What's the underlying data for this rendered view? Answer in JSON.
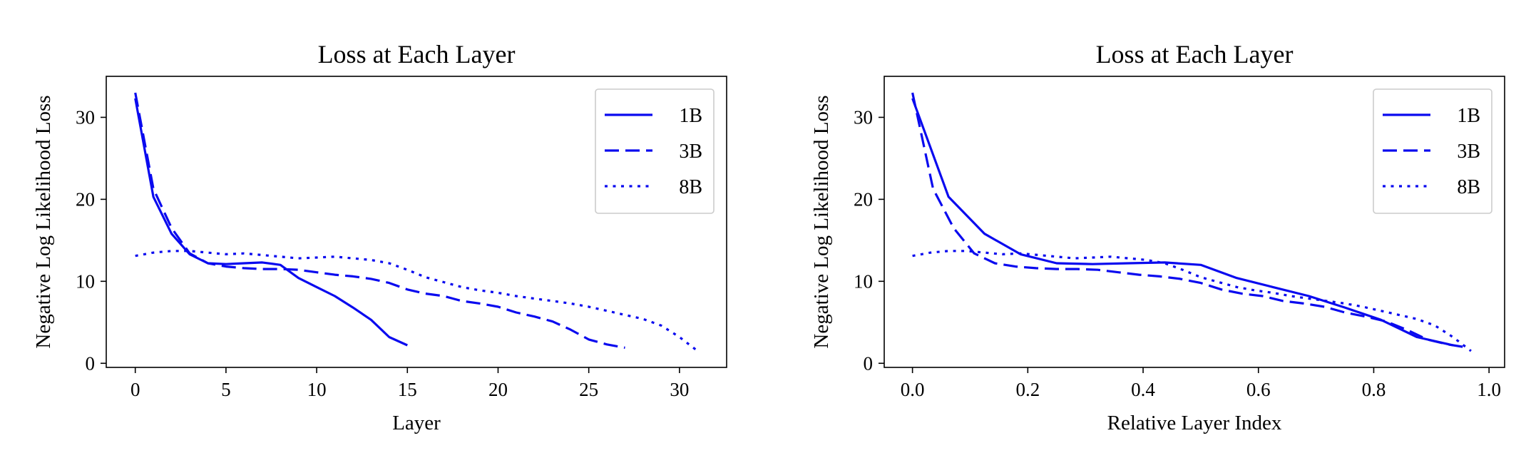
{
  "chart_data": [
    {
      "type": "line",
      "title": "Loss at Each Layer",
      "xlabel": "Layer",
      "ylabel": "Negative Log Likelihood Loss",
      "xlim": [
        -1.6,
        32.6
      ],
      "ylim": [
        -0.5,
        35
      ],
      "xticks": [
        0,
        5,
        10,
        15,
        20,
        25,
        30
      ],
      "xtick_labels": [
        "0",
        "5",
        "10",
        "15",
        "20",
        "25",
        "30"
      ],
      "yticks": [
        0,
        10,
        20,
        30
      ],
      "ytick_labels": [
        "0",
        "10",
        "20",
        "30"
      ],
      "grid": false,
      "legend_position": "top-right",
      "color": "#0a0aef",
      "series": [
        {
          "name": "1B",
          "style": "solid",
          "x": [
            0,
            1,
            2,
            3,
            4,
            5,
            6,
            7,
            8,
            9,
            10,
            11,
            12,
            13,
            14,
            15
          ],
          "y": [
            32.3,
            20.3,
            15.8,
            13.3,
            12.2,
            12.1,
            12.2,
            12.3,
            12.0,
            10.4,
            9.3,
            8.2,
            6.8,
            5.3,
            3.2,
            2.2
          ]
        },
        {
          "name": "3B",
          "style": "dashed",
          "x": [
            0,
            1,
            2,
            3,
            4,
            5,
            6,
            7,
            8,
            9,
            10,
            11,
            12,
            13,
            14,
            15,
            16,
            17,
            18,
            19,
            20,
            21,
            22,
            23,
            24,
            25,
            26,
            27
          ],
          "y": [
            33.0,
            21.3,
            16.5,
            13.4,
            12.2,
            11.8,
            11.6,
            11.5,
            11.5,
            11.4,
            11.1,
            10.8,
            10.6,
            10.3,
            9.8,
            9.0,
            8.5,
            8.2,
            7.6,
            7.3,
            6.9,
            6.2,
            5.7,
            5.1,
            4.1,
            2.9,
            2.3,
            1.9
          ]
        },
        {
          "name": "8B",
          "style": "dotted",
          "x": [
            0,
            1,
            2,
            3,
            4,
            5,
            6,
            7,
            8,
            9,
            10,
            11,
            12,
            13,
            14,
            15,
            16,
            17,
            18,
            19,
            20,
            21,
            22,
            23,
            24,
            25,
            26,
            27,
            28,
            29,
            30,
            31
          ],
          "y": [
            13.1,
            13.5,
            13.7,
            13.7,
            13.5,
            13.3,
            13.4,
            13.2,
            13.0,
            12.8,
            12.9,
            13.0,
            12.8,
            12.6,
            12.2,
            11.4,
            10.5,
            9.9,
            9.3,
            8.9,
            8.6,
            8.2,
            7.9,
            7.6,
            7.3,
            6.9,
            6.4,
            5.9,
            5.4,
            4.6,
            3.2,
            1.5
          ]
        }
      ]
    },
    {
      "type": "line",
      "title": "Loss at Each Layer",
      "xlabel": "Relative Layer Index",
      "ylabel": "Negative Log Likelihood Loss",
      "xlim": [
        -0.049,
        1.027
      ],
      "ylim": [
        -0.5,
        35
      ],
      "xticks": [
        0.0,
        0.2,
        0.4,
        0.6,
        0.8,
        1.0
      ],
      "xtick_labels": [
        "0.0",
        "0.2",
        "0.4",
        "0.6",
        "0.8",
        "1.0"
      ],
      "yticks": [
        0,
        10,
        20,
        30
      ],
      "ytick_labels": [
        "0",
        "10",
        "20",
        "30"
      ],
      "grid": false,
      "legend_position": "top-right",
      "color": "#0a0aef",
      "series": [
        {
          "name": "1B",
          "style": "solid",
          "x": [
            0,
            0.0625,
            0.125,
            0.1875,
            0.25,
            0.3125,
            0.375,
            0.4375,
            0.5,
            0.5625,
            0.625,
            0.6875,
            0.75,
            0.8125,
            0.875,
            0.9375
          ],
          "y": [
            32.3,
            20.3,
            15.8,
            13.3,
            12.2,
            12.1,
            12.2,
            12.3,
            12.0,
            10.4,
            9.3,
            8.2,
            6.8,
            5.3,
            3.2,
            2.2
          ]
        },
        {
          "name": "3B",
          "style": "dashed",
          "x": [
            0,
            0.0357,
            0.0714,
            0.1071,
            0.1429,
            0.1786,
            0.2143,
            0.25,
            0.2857,
            0.3214,
            0.3571,
            0.3929,
            0.4286,
            0.4643,
            0.5,
            0.5357,
            0.5714,
            0.6071,
            0.6429,
            0.6786,
            0.7143,
            0.75,
            0.7857,
            0.8214,
            0.8571,
            0.8929,
            0.9286,
            0.9643
          ],
          "y": [
            33.0,
            21.3,
            16.5,
            13.4,
            12.2,
            11.8,
            11.6,
            11.5,
            11.5,
            11.4,
            11.1,
            10.8,
            10.6,
            10.3,
            9.8,
            9.0,
            8.5,
            8.2,
            7.6,
            7.3,
            6.9,
            6.2,
            5.7,
            5.1,
            4.1,
            2.9,
            2.3,
            1.9
          ]
        },
        {
          "name": "8B",
          "style": "dotted",
          "x": [
            0,
            0.03125,
            0.0625,
            0.09375,
            0.125,
            0.15625,
            0.1875,
            0.21875,
            0.25,
            0.28125,
            0.3125,
            0.34375,
            0.375,
            0.40625,
            0.4375,
            0.46875,
            0.5,
            0.53125,
            0.5625,
            0.59375,
            0.625,
            0.65625,
            0.6875,
            0.71875,
            0.75,
            0.78125,
            0.8125,
            0.84375,
            0.875,
            0.90625,
            0.9375,
            0.96875
          ],
          "y": [
            13.1,
            13.5,
            13.7,
            13.7,
            13.5,
            13.3,
            13.4,
            13.2,
            13.0,
            12.8,
            12.9,
            13.0,
            12.8,
            12.6,
            12.2,
            11.4,
            10.5,
            9.9,
            9.3,
            8.9,
            8.6,
            8.2,
            7.9,
            7.6,
            7.3,
            6.9,
            6.4,
            5.9,
            5.4,
            4.6,
            3.2,
            1.5
          ]
        }
      ]
    }
  ]
}
